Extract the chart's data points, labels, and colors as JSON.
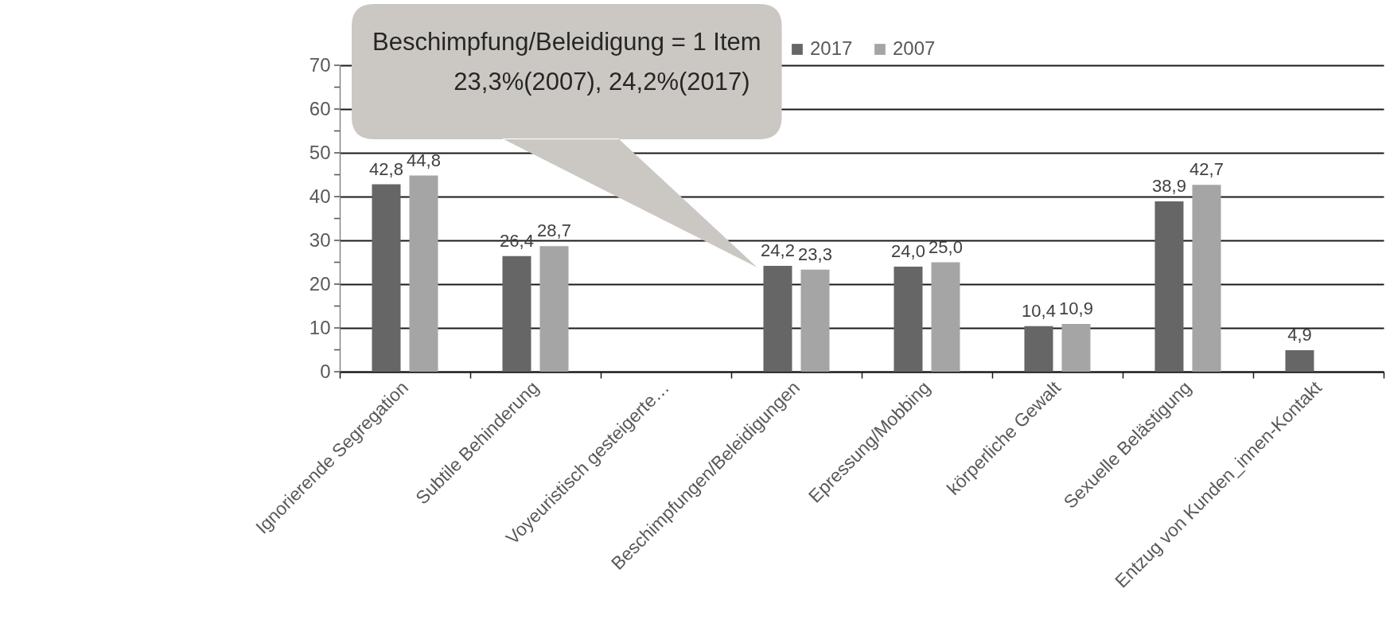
{
  "chart_data": {
    "type": "bar",
    "categories": [
      "Ignorierende Segregation",
      "Subtile Behinderung",
      "Voyeuristisch gesteigerte…",
      "Beschimpfungen/Beleidigungen",
      "Epressung/Mobbing",
      "körperliche Gewalt",
      "Sexuelle Belästigung",
      "Entzug von Kunden_innen-Kontakt"
    ],
    "series": [
      {
        "name": "2017",
        "color": "#666666",
        "values": [
          42.8,
          26.4,
          null,
          24.2,
          24.0,
          10.4,
          38.9,
          4.9
        ],
        "value_labels": [
          "42,8",
          "26,4",
          null,
          "24,2",
          "24,0",
          "10,4",
          "38,9",
          "4,9"
        ]
      },
      {
        "name": "2007",
        "color": "#a5a5a5",
        "values": [
          44.8,
          28.7,
          null,
          23.3,
          25.0,
          10.9,
          42.7,
          null
        ],
        "value_labels": [
          "44,8",
          "28,7",
          null,
          "23,3",
          "25,0",
          "10,9",
          "42,7",
          null
        ]
      }
    ],
    "ylim": [
      0,
      70
    ],
    "yticks": [
      0,
      {
        "value": 5,
        "label": null
      },
      10,
      {
        "value": 15,
        "label": null
      },
      20,
      {
        "value": 25,
        "label": null
      },
      30,
      {
        "value": 35,
        "label": null
      },
      40,
      {
        "value": 45,
        "label": null
      },
      50,
      {
        "value": 55,
        "label": null
      },
      60,
      {
        "value": 65,
        "label": null
      },
      70
    ],
    "grid": "y",
    "legend": "top",
    "annotations": [
      "Beschimpfung/Beleidigung = 1 Item\n23,3%(2007), 24,2%(2017)"
    ]
  }
}
